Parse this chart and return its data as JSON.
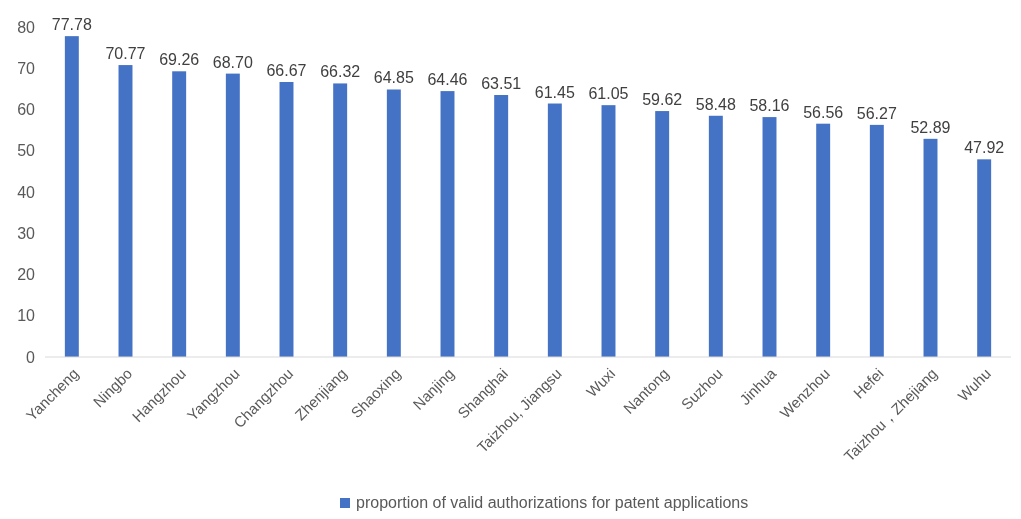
{
  "chart_data": {
    "type": "bar",
    "categories": [
      "Yancheng",
      "Ningbo",
      "Hangzhou",
      "Yangzhou",
      "Changzhou",
      "Zhenjiang",
      "Shaoxing",
      "Nanjing",
      "Shanghai",
      "Taizhou, Jiangsu",
      "Wuxi",
      "Nantong",
      "Suzhou",
      "Jinhua",
      "Wenzhou",
      "Hefei",
      "Taizhou，Zhejiang",
      "Wuhu"
    ],
    "series": [
      {
        "name": "proportion of valid authorizations for patent applications",
        "color": "#4472c4",
        "values": [
          77.78,
          70.77,
          69.26,
          68.7,
          66.67,
          66.32,
          64.85,
          64.46,
          63.51,
          61.45,
          61.05,
          59.62,
          58.48,
          58.16,
          56.56,
          56.27,
          52.89,
          47.92
        ],
        "value_labels": [
          "77.78",
          "70.77",
          "69.26",
          "68.70",
          "66.67",
          "66.32",
          "64.85",
          "64.46",
          "63.51",
          "61.45",
          "61.05",
          "59.62",
          "58.48",
          "58.16",
          "56.56",
          "56.27",
          "52.89",
          "47.92"
        ]
      }
    ],
    "ylim": [
      0,
      80
    ],
    "yticks": [
      0,
      10,
      20,
      30,
      40,
      50,
      60,
      70,
      80
    ],
    "grid": false,
    "legend": "bottom"
  }
}
